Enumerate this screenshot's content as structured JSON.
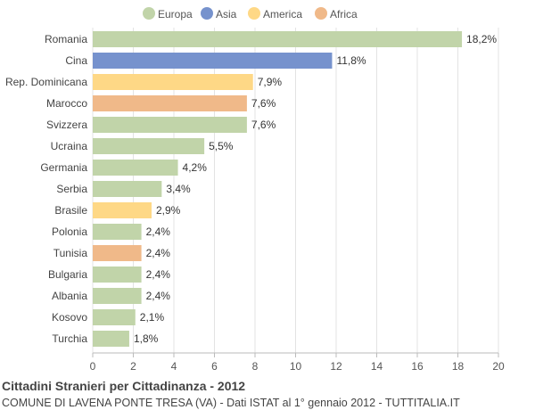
{
  "title": "Cittadini Stranieri per Cittadinanza - 2012",
  "subtitle": "COMUNE DI LAVENA PONTE TRESA (VA) - Dati ISTAT al 1° gennaio 2012 - TUTTITALIA.IT",
  "legend": [
    {
      "name": "Europa",
      "color": "#c1d4a9"
    },
    {
      "name": "Asia",
      "color": "#7692cd"
    },
    {
      "name": "America",
      "color": "#fed886"
    },
    {
      "name": "Africa",
      "color": "#f0b989"
    }
  ],
  "chart_data": {
    "type": "bar",
    "orientation": "horizontal",
    "categories": [
      "Romania",
      "Cina",
      "Rep. Dominicana",
      "Marocco",
      "Svizzera",
      "Ucraina",
      "Germania",
      "Serbia",
      "Brasile",
      "Polonia",
      "Tunisia",
      "Bulgaria",
      "Albania",
      "Kosovo",
      "Turchia"
    ],
    "values": [
      18.2,
      11.8,
      7.9,
      7.6,
      7.6,
      5.5,
      4.2,
      3.4,
      2.9,
      2.4,
      2.4,
      2.4,
      2.4,
      2.1,
      1.8
    ],
    "value_labels": [
      "18,2%",
      "11,8%",
      "7,9%",
      "7,6%",
      "7,6%",
      "5,5%",
      "4,2%",
      "3,4%",
      "2,9%",
      "2,4%",
      "2,4%",
      "2,4%",
      "2,4%",
      "2,1%",
      "1,8%"
    ],
    "groups": [
      "Europa",
      "Asia",
      "America",
      "Africa",
      "Europa",
      "Europa",
      "Europa",
      "Europa",
      "America",
      "Europa",
      "Africa",
      "Europa",
      "Europa",
      "Europa",
      "Europa"
    ],
    "xlim": [
      0,
      20
    ],
    "xticks": [
      "0",
      "2",
      "4",
      "6",
      "8",
      "10",
      "12",
      "14",
      "16",
      "18",
      "20"
    ],
    "grid": true,
    "legend_position": "top-center"
  }
}
